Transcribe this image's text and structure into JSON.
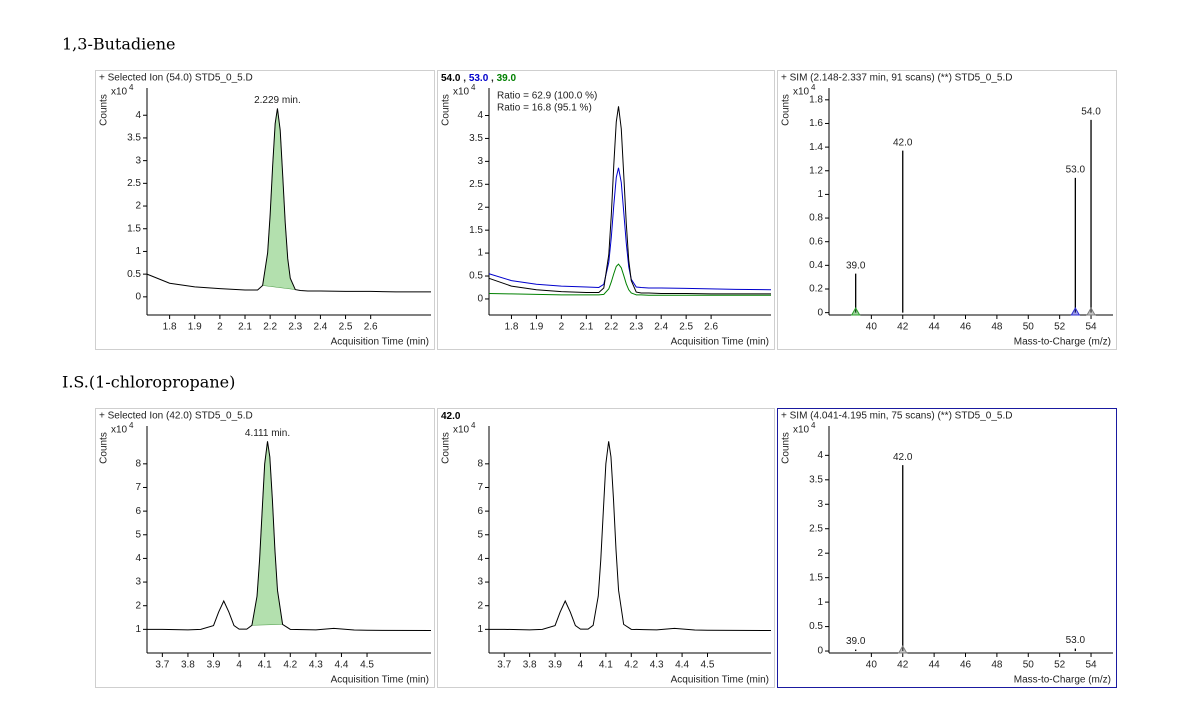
{
  "headings": [
    "1,3-Butadiene",
    "I.S.(1-chloropropane)"
  ],
  "chart_data": [
    {
      "type": "line",
      "title": "+ Selected Ion (54.0) STD5_0_5.D",
      "ylabel": "Counts",
      "y_scale": {
        "base": "x10",
        "exponent": "4"
      },
      "xlabel": "Acquisition Time (min)",
      "peak_label": "2.229 min.",
      "x": [
        1.71,
        1.8,
        1.9,
        2.0,
        2.1,
        2.15,
        2.17,
        2.19,
        2.2,
        2.21,
        2.22,
        2.229,
        2.24,
        2.25,
        2.26,
        2.27,
        2.28,
        2.3,
        2.32,
        2.35,
        2.4,
        2.5,
        2.6,
        2.7,
        2.84
      ],
      "values": [
        0.5,
        0.3,
        0.22,
        0.18,
        0.15,
        0.15,
        0.25,
        0.97,
        1.81,
        2.89,
        3.82,
        4.15,
        3.67,
        2.67,
        1.63,
        0.84,
        0.41,
        0.16,
        0.14,
        0.13,
        0.13,
        0.12,
        0.12,
        0.11,
        0.11
      ],
      "color": "#000000",
      "integration_range": [
        2.17,
        2.3
      ],
      "integration_color": "#a6dba0",
      "xlim": [
        1.71,
        2.84
      ],
      "xticks": [
        1.8,
        1.9,
        2,
        2.1,
        2.2,
        2.3,
        2.4,
        2.5,
        2.6
      ],
      "ylim": [
        -0.4,
        4.6
      ],
      "yticks": [
        0,
        0.5,
        1,
        1.5,
        2,
        2.5,
        3,
        3.5,
        4
      ]
    },
    {
      "type": "line",
      "title_separator": " , ",
      "ylabel": "Counts",
      "y_scale": {
        "base": "x10",
        "exponent": "4"
      },
      "xlabel": "Acquisition Time (min)",
      "annotations": [
        {
          "text": "Ratio = 62.9 (100.0 %)",
          "color": "#0000cc"
        },
        {
          "text": "Ratio = 16.8 (95.1 %)",
          "color": "#008000"
        }
      ],
      "x": [
        1.71,
        1.8,
        1.9,
        2.0,
        2.1,
        2.15,
        2.17,
        2.19,
        2.2,
        2.21,
        2.22,
        2.229,
        2.24,
        2.25,
        2.26,
        2.27,
        2.28,
        2.3,
        2.32,
        2.35,
        2.4,
        2.5,
        2.6,
        2.7,
        2.84
      ],
      "series": [
        {
          "name": "54.0",
          "color": "#000000",
          "values": [
            0.45,
            0.28,
            0.2,
            0.16,
            0.14,
            0.14,
            0.24,
            0.97,
            1.82,
            2.92,
            3.86,
            4.2,
            3.71,
            2.7,
            1.65,
            0.84,
            0.4,
            0.15,
            0.13,
            0.13,
            0.12,
            0.12,
            0.11,
            0.11,
            0.11
          ]
        },
        {
          "name": "53.0",
          "color": "#0000cc",
          "values": [
            0.55,
            0.4,
            0.32,
            0.28,
            0.26,
            0.25,
            0.32,
            0.8,
            1.34,
            2.04,
            2.65,
            2.86,
            2.54,
            1.89,
            1.22,
            0.7,
            0.43,
            0.26,
            0.25,
            0.24,
            0.24,
            0.23,
            0.22,
            0.21,
            0.2
          ]
        },
        {
          "name": "39.0",
          "color": "#008000",
          "values": [
            0.12,
            0.11,
            0.1,
            0.09,
            0.09,
            0.09,
            0.1,
            0.22,
            0.37,
            0.55,
            0.71,
            0.76,
            0.68,
            0.51,
            0.33,
            0.2,
            0.13,
            0.09,
            0.09,
            0.08,
            0.08,
            0.08,
            0.08,
            0.08,
            0.08
          ]
        }
      ],
      "xlim": [
        1.71,
        2.84
      ],
      "xticks": [
        1.8,
        1.9,
        2,
        2.1,
        2.2,
        2.3,
        2.4,
        2.5,
        2.6
      ],
      "ylim": [
        -0.35,
        4.6
      ],
      "yticks": [
        0,
        0.5,
        1,
        1.5,
        2,
        2.5,
        3,
        3.5,
        4
      ]
    },
    {
      "type": "stem",
      "title": "+ SIM (2.148-2.337 min, 91 scans) (**) STD5_0_5.D",
      "ylabel": "Counts",
      "y_scale": {
        "base": "x10",
        "exponent": "4"
      },
      "xlabel": "Mass-to-Charge (m/z)",
      "x": [
        39,
        42,
        53,
        54
      ],
      "x_labels": [
        "39.0",
        "42.0",
        "53.0",
        "54.0"
      ],
      "values": [
        0.33,
        1.37,
        1.14,
        1.63
      ],
      "color": "#000000",
      "markers": [
        {
          "x": 39,
          "color": "#2ca02c"
        },
        {
          "x": 53,
          "color": "#3030d0"
        },
        {
          "x": 54,
          "color": "#808080"
        }
      ],
      "xlim": [
        37.3,
        55.4
      ],
      "xticks": [
        40,
        42,
        44,
        46,
        48,
        50,
        52,
        54
      ],
      "ylim": [
        -0.02,
        1.9
      ],
      "yticks": [
        0,
        0.2,
        0.4,
        0.6,
        0.8,
        1,
        1.2,
        1.4,
        1.6,
        1.8
      ]
    },
    {
      "type": "line",
      "title": "+ Selected Ion (42.0) STD5_0_5.D",
      "ylabel": "Counts",
      "y_scale": {
        "base": "x10",
        "exponent": "4"
      },
      "xlabel": "Acquisition Time (min)",
      "peak_label": "4.111 min.",
      "x": [
        3.64,
        3.7,
        3.8,
        3.85,
        3.9,
        3.92,
        3.94,
        3.96,
        3.98,
        4.0,
        4.03,
        4.05,
        4.07,
        4.08,
        4.09,
        4.1,
        4.111,
        4.12,
        4.13,
        4.14,
        4.15,
        4.17,
        4.2,
        4.25,
        4.3,
        4.37,
        4.45,
        4.5,
        4.75
      ],
      "values": [
        1.0,
        1.0,
        0.98,
        1.0,
        1.16,
        1.73,
        2.2,
        1.73,
        1.16,
        1.01,
        1.01,
        1.17,
        2.4,
        3.94,
        6.0,
        8.0,
        8.95,
        8.3,
        6.5,
        4.35,
        2.65,
        1.21,
        1.0,
        0.99,
        0.98,
        1.04,
        0.97,
        0.96,
        0.95
      ],
      "color": "#000000",
      "integration_range": [
        4.05,
        4.17
      ],
      "integration_color": "#a6dba0",
      "xlim": [
        3.64,
        4.75
      ],
      "xticks": [
        3.7,
        3.8,
        3.9,
        4,
        4.1,
        4.2,
        4.3,
        4.4,
        4.5
      ],
      "ylim": [
        0,
        9.6
      ],
      "yticks": [
        1,
        2,
        3,
        4,
        5,
        6,
        7,
        8
      ]
    },
    {
      "type": "line",
      "title_separator": " , ",
      "ylabel": "Counts",
      "y_scale": {
        "base": "x10",
        "exponent": "4"
      },
      "xlabel": "Acquisition Time (min)",
      "x": [
        3.64,
        3.7,
        3.8,
        3.85,
        3.9,
        3.92,
        3.94,
        3.96,
        3.98,
        4.0,
        4.03,
        4.05,
        4.07,
        4.08,
        4.09,
        4.1,
        4.111,
        4.12,
        4.13,
        4.14,
        4.15,
        4.17,
        4.2,
        4.25,
        4.3,
        4.37,
        4.45,
        4.5,
        4.75
      ],
      "series": [
        {
          "name": "42.0",
          "color": "#000000",
          "values": [
            1.0,
            1.0,
            0.98,
            1.0,
            1.16,
            1.73,
            2.2,
            1.73,
            1.16,
            1.01,
            1.01,
            1.17,
            2.4,
            3.94,
            6.0,
            8.0,
            8.95,
            8.3,
            6.5,
            4.35,
            2.65,
            1.21,
            1.0,
            0.99,
            0.98,
            1.04,
            0.97,
            0.96,
            0.95
          ]
        }
      ],
      "xlim": [
        3.64,
        4.75
      ],
      "xticks": [
        3.7,
        3.8,
        3.9,
        4,
        4.1,
        4.2,
        4.3,
        4.4,
        4.5
      ],
      "ylim": [
        0,
        9.6
      ],
      "yticks": [
        1,
        2,
        3,
        4,
        5,
        6,
        7,
        8
      ]
    },
    {
      "type": "stem",
      "title": "+ SIM (4.041-4.195 min, 75 scans) (**) STD5_0_5.D",
      "ylabel": "Counts",
      "y_scale": {
        "base": "x10",
        "exponent": "4"
      },
      "xlabel": "Mass-to-Charge (m/z)",
      "x": [
        39,
        42,
        53
      ],
      "x_labels": [
        "39.0",
        "42.0",
        "53.0"
      ],
      "values": [
        0.03,
        3.8,
        0.05
      ],
      "color": "#000000",
      "markers": [
        {
          "x": 42,
          "color": "#808080"
        }
      ],
      "selected": true,
      "xlim": [
        37.3,
        55.4
      ],
      "xticks": [
        40,
        42,
        44,
        46,
        48,
        50,
        52,
        54
      ],
      "ylim": [
        -0.04,
        4.6
      ],
      "yticks": [
        0,
        0.5,
        1,
        1.5,
        2,
        2.5,
        3,
        3.5,
        4
      ]
    }
  ]
}
